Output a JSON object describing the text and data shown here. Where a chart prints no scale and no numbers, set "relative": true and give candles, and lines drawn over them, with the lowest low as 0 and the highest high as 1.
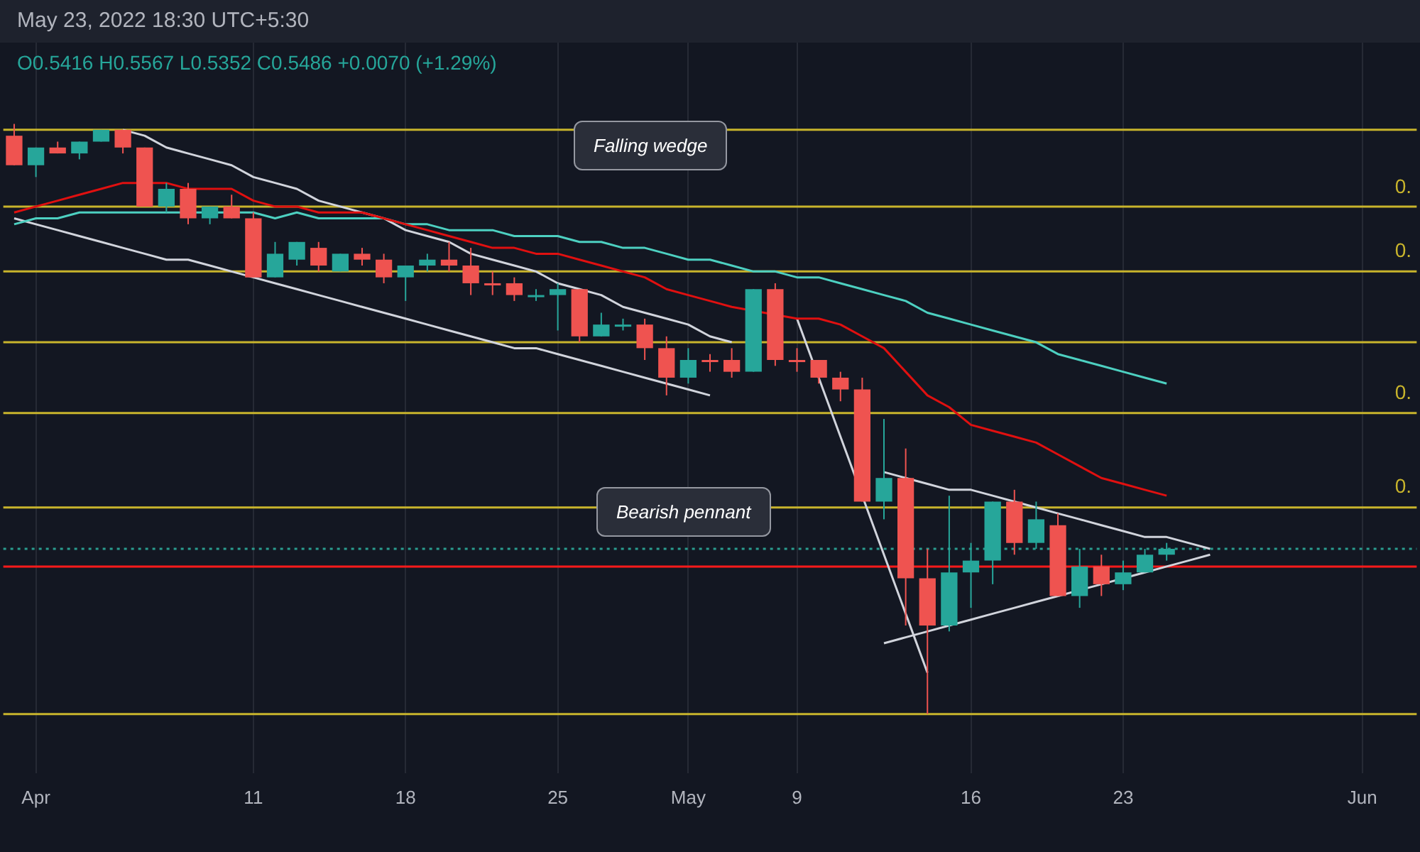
{
  "chart_data": {
    "type": "candlestick",
    "relative": true,
    "legend": false,
    "grid": "x",
    "categories": [
      null,
      "Apr",
      null,
      null,
      null,
      null,
      null,
      null,
      null,
      null,
      null,
      "11",
      null,
      null,
      null,
      null,
      null,
      null,
      "18",
      null,
      null,
      null,
      null,
      null,
      null,
      "25",
      null,
      null,
      null,
      null,
      null,
      "May",
      null,
      null,
      null,
      null,
      "9",
      null,
      null,
      null,
      null,
      null,
      null,
      null,
      "16",
      null,
      null,
      null,
      null,
      null,
      null,
      "23",
      null,
      null,
      null,
      null,
      null,
      null,
      null,
      null,
      null,
      null,
      "Jun",
      null,
      null
    ],
    "colors": [
      "#ef5350",
      "#26a69a",
      "#ef5350",
      "#26a69a",
      "#26a69a",
      "#ef5350",
      "#ef5350",
      "#26a69a",
      "#ef5350",
      "#26a69a",
      "#ef5350",
      "#ef5350",
      "#26a69a",
      "#26a69a",
      "#ef5350",
      "#26a69a",
      "#ef5350",
      "#ef5350",
      "#26a69a",
      "#26a69a",
      "#ef5350",
      "#ef5350",
      "#ef5350",
      "#ef5350",
      "#26a69a",
      "#26a69a",
      "#ef5350",
      "#26a69a",
      "#26a69a",
      "#ef5350",
      "#ef5350",
      "#26a69a",
      "#ef5350",
      "#ef5350",
      "#26a69a",
      "#ef5350",
      "#ef5350",
      "#ef5350",
      "#ef5350",
      "#ef5350",
      "#26a69a",
      "#ef5350",
      "#ef5350",
      "#26a69a",
      "#26a69a",
      "#26a69a",
      "#ef5350",
      "#26a69a",
      "#ef5350",
      "#26a69a",
      "#ef5350",
      "#26a69a",
      "#26a69a",
      "#26a69a",
      null,
      null,
      null,
      null,
      null,
      null,
      null,
      null,
      null,
      null,
      null
    ],
    "ohlc": [
      [
        0.98,
        1,
        0.93,
        0.93
      ],
      [
        0.93,
        0.96,
        0.91,
        0.96
      ],
      [
        0.96,
        0.97,
        0.95,
        0.95
      ],
      [
        0.95,
        0.97,
        0.94,
        0.97
      ],
      [
        0.97,
        0.99,
        0.97,
        0.99
      ],
      [
        0.99,
        0.99,
        0.95,
        0.96
      ],
      [
        0.96,
        0.96,
        0.86,
        0.86
      ],
      [
        0.86,
        0.9,
        0.85,
        0.89
      ],
      [
        0.89,
        0.9,
        0.83,
        0.84
      ],
      [
        0.84,
        0.86,
        0.83,
        0.86
      ],
      [
        0.86,
        0.88,
        0.84,
        0.84
      ],
      [
        0.84,
        0.85,
        0.74,
        0.74
      ],
      [
        0.74,
        0.8,
        0.74,
        0.78
      ],
      [
        0.77,
        0.8,
        0.76,
        0.8
      ],
      [
        0.79,
        0.8,
        0.75,
        0.76
      ],
      [
        0.75,
        0.78,
        0.75,
        0.78
      ],
      [
        0.78,
        0.79,
        0.76,
        0.77
      ],
      [
        0.77,
        0.78,
        0.73,
        0.74
      ],
      [
        0.74,
        0.76,
        0.7,
        0.76
      ],
      [
        0.76,
        0.78,
        0.75,
        0.77
      ],
      [
        0.77,
        0.8,
        0.75,
        0.76
      ],
      [
        0.76,
        0.79,
        0.71,
        0.73
      ],
      [
        0.73,
        0.75,
        0.71,
        0.73
      ],
      [
        0.73,
        0.74,
        0.7,
        0.71
      ],
      [
        0.71,
        0.72,
        0.7,
        0.71
      ],
      [
        0.71,
        0.73,
        0.65,
        0.72
      ],
      [
        0.72,
        0.72,
        0.63,
        0.64
      ],
      [
        0.64,
        0.68,
        0.64,
        0.66
      ],
      [
        0.66,
        0.67,
        0.65,
        0.66
      ],
      [
        0.66,
        0.67,
        0.6,
        0.62
      ],
      [
        0.62,
        0.64,
        0.54,
        0.57
      ],
      [
        0.57,
        0.62,
        0.56,
        0.6
      ],
      [
        0.6,
        0.61,
        0.58,
        0.6
      ],
      [
        0.6,
        0.62,
        0.57,
        0.58
      ],
      [
        0.58,
        0.72,
        0.58,
        0.72
      ],
      [
        0.72,
        0.73,
        0.59,
        0.6
      ],
      [
        0.6,
        0.62,
        0.58,
        0.6
      ],
      [
        0.6,
        0.6,
        0.56,
        0.57
      ],
      [
        0.57,
        0.58,
        0.53,
        0.55
      ],
      [
        0.55,
        0.57,
        0.36,
        0.36
      ],
      [
        0.36,
        0.5,
        0.33,
        0.4
      ],
      [
        0.4,
        0.45,
        0.15,
        0.23
      ],
      [
        0.23,
        0.28,
        0,
        0.15
      ],
      [
        0.15,
        0.37,
        0.14,
        0.24
      ],
      [
        0.24,
        0.29,
        0.18,
        0.26
      ],
      [
        0.26,
        0.36,
        0.22,
        0.36
      ],
      [
        0.36,
        0.38,
        0.27,
        0.29
      ],
      [
        0.29,
        0.36,
        0.28,
        0.33
      ],
      [
        0.32,
        0.34,
        0.2,
        0.2
      ],
      [
        0.2,
        0.28,
        0.18,
        0.25
      ],
      [
        0.25,
        0.27,
        0.2,
        0.22
      ],
      [
        0.22,
        0.26,
        0.21,
        0.24
      ],
      [
        0.24,
        0.28,
        0.24,
        0.27
      ],
      [
        0.27,
        0.29,
        0.26,
        0.28
      ],
      null,
      null,
      null,
      null,
      null,
      null,
      null,
      null,
      null,
      null,
      null
    ],
    "series": [
      {
        "type": "line",
        "color": "#e01010",
        "values": [
          0.85,
          0.86,
          0.87,
          0.88,
          0.89,
          0.9,
          null,
          0.9,
          0.89,
          0.89,
          0.89,
          0.87,
          0.86,
          0.86,
          0.85,
          0.85,
          0.85,
          0.84,
          0.83,
          0.82,
          0.81,
          0.8,
          0.79,
          0.79,
          0.78,
          0.78,
          0.77,
          0.76,
          0.75,
          0.74,
          0.72,
          0.71,
          0.7,
          0.69,
          null,
          null,
          0.67,
          0.67,
          0.66,
          0.64,
          0.62,
          0.58,
          0.54,
          0.52,
          0.49,
          0.48,
          0.47,
          0.46,
          0.44,
          0.42,
          0.4,
          0.39,
          0.38,
          0.37,
          null,
          null,
          null,
          null,
          null,
          null,
          null,
          null,
          null,
          null,
          null
        ]
      },
      {
        "type": "line",
        "color": "#4dd0c1",
        "values": [
          0.83,
          0.84,
          0.84,
          0.85,
          0.85,
          0.85,
          0.85,
          0.85,
          null,
          0.85,
          0.85,
          0.85,
          0.84,
          0.85,
          0.84,
          0.84,
          0.84,
          0.84,
          0.83,
          0.83,
          0.82,
          0.82,
          0.82,
          0.81,
          0.81,
          0.81,
          0.8,
          0.8,
          0.79,
          0.79,
          0.78,
          0.77,
          0.77,
          0.76,
          0.75,
          0.75,
          0.74,
          0.74,
          0.73,
          0.72,
          0.71,
          0.7,
          0.68,
          0.67,
          0.66,
          0.65,
          0.64,
          0.63,
          0.61,
          0.6,
          0.59,
          0.58,
          0.57,
          0.56,
          null,
          null,
          null,
          null,
          null,
          null,
          null,
          null,
          null,
          null,
          null
        ]
      },
      {
        "type": "line",
        "color": "#d1d4dc",
        "values": [
          null,
          null,
          null,
          null,
          null,
          0.99,
          0.98,
          0.96,
          0.95,
          0.94,
          0.93,
          0.91,
          0.9,
          0.89,
          0.87,
          0.86,
          0.85,
          0.84,
          0.82,
          0.81,
          0.8,
          0.78,
          0.77,
          0.76,
          0.75,
          0.73,
          0.72,
          0.71,
          0.69,
          0.68,
          0.67,
          0.66,
          0.64,
          0.63,
          null,
          null,
          null,
          null,
          null,
          null,
          null,
          null,
          null,
          null,
          null,
          null,
          null,
          null,
          null,
          null,
          null,
          null,
          null,
          null,
          null,
          null,
          null,
          null,
          null,
          null,
          null,
          null,
          null,
          null,
          null
        ]
      },
      {
        "type": "line",
        "color": "#d1d4dc",
        "values": [
          0.84,
          0.83,
          0.82,
          0.81,
          0.8,
          0.79,
          0.78,
          0.77,
          0.77,
          0.76,
          0.75,
          0.74,
          0.73,
          0.72,
          0.71,
          0.7,
          0.69,
          0.68,
          0.67,
          0.66,
          0.65,
          0.64,
          0.63,
          0.62,
          0.62,
          0.61,
          0.6,
          0.59,
          0.58,
          0.57,
          0.56,
          0.55,
          0.54,
          null,
          null,
          null,
          null,
          null,
          null,
          null,
          null,
          null,
          null,
          null,
          null,
          null,
          null,
          null,
          null,
          null,
          null,
          null,
          null,
          null,
          null,
          null,
          null,
          null,
          null,
          null,
          null,
          null,
          null,
          null,
          null
        ]
      },
      {
        "type": "line",
        "color": "#d1d4dc",
        "values": [
          null,
          null,
          null,
          null,
          null,
          null,
          null,
          null,
          null,
          null,
          null,
          null,
          null,
          null,
          null,
          null,
          null,
          null,
          null,
          null,
          null,
          null,
          null,
          null,
          null,
          null,
          null,
          null,
          null,
          null,
          null,
          null,
          null,
          null,
          null,
          null,
          0.67,
          0.57,
          0.47,
          null,
          0.27,
          0.17,
          0.07,
          null,
          null,
          null,
          null,
          null,
          null,
          null,
          null,
          null,
          null,
          null,
          null,
          null,
          null,
          null,
          null,
          null,
          null,
          null,
          null,
          null,
          null
        ]
      },
      {
        "type": "line",
        "color": "#d1d4dc",
        "values": [
          null,
          null,
          null,
          null,
          null,
          null,
          null,
          null,
          null,
          null,
          null,
          null,
          null,
          null,
          null,
          null,
          null,
          null,
          null,
          null,
          null,
          null,
          null,
          null,
          null,
          null,
          null,
          null,
          null,
          null,
          null,
          null,
          null,
          null,
          null,
          null,
          null,
          null,
          null,
          null,
          0.41,
          0.4,
          0.39,
          0.38,
          0.38,
          0.37,
          0.36,
          0.35,
          0.34,
          0.33,
          0.32,
          0.31,
          0.3,
          0.3,
          0.29,
          0.28,
          null,
          null,
          null,
          null,
          null,
          null,
          null,
          null,
          null
        ]
      },
      {
        "type": "line",
        "color": "#d1d4dc",
        "values": [
          null,
          null,
          null,
          null,
          null,
          null,
          null,
          null,
          null,
          null,
          null,
          null,
          null,
          null,
          null,
          null,
          null,
          null,
          null,
          null,
          null,
          null,
          null,
          null,
          null,
          null,
          null,
          null,
          null,
          null,
          null,
          null,
          null,
          null,
          null,
          null,
          null,
          null,
          null,
          null,
          0.12,
          0.13,
          0.14,
          0.15,
          0.16,
          0.17,
          0.18,
          0.19,
          0.2,
          null,
          0.22,
          0.23,
          0.24,
          0.25,
          0.26,
          0.27,
          null,
          null,
          null,
          null,
          null,
          null,
          null,
          null,
          null
        ]
      }
    ],
    "ref_lines": [
      {
        "axis": "y",
        "value": 0.99,
        "color": "#c8b42c"
      },
      {
        "axis": "y",
        "value": 0.86,
        "color": "#c8b42c"
      },
      {
        "axis": "y",
        "value": 0.75,
        "color": "#c8b42c"
      },
      {
        "axis": "y",
        "value": 0.63,
        "color": "#c8b42c"
      },
      {
        "axis": "y",
        "value": 0.51,
        "color": "#c8b42c"
      },
      {
        "axis": "y",
        "value": 0.35,
        "color": "#c8b42c"
      },
      {
        "axis": "y",
        "value": 0,
        "color": "#c8b42c"
      },
      {
        "axis": "y",
        "value": 0.28,
        "color": "#2a9d8f",
        "line_style": "dotted"
      },
      {
        "axis": "y",
        "value": 0.25,
        "color": "#ff1a1a"
      }
    ],
    "annotations": [
      "May 23, 2022 18:30 UTC+5:30",
      "O0.5416 H0.5567 L0.5352 C0.5486 +0.0070 (+1.29%)",
      "Falling wedge",
      "Bearish pennant",
      "0.",
      "0.",
      "0.",
      "0."
    ]
  }
}
